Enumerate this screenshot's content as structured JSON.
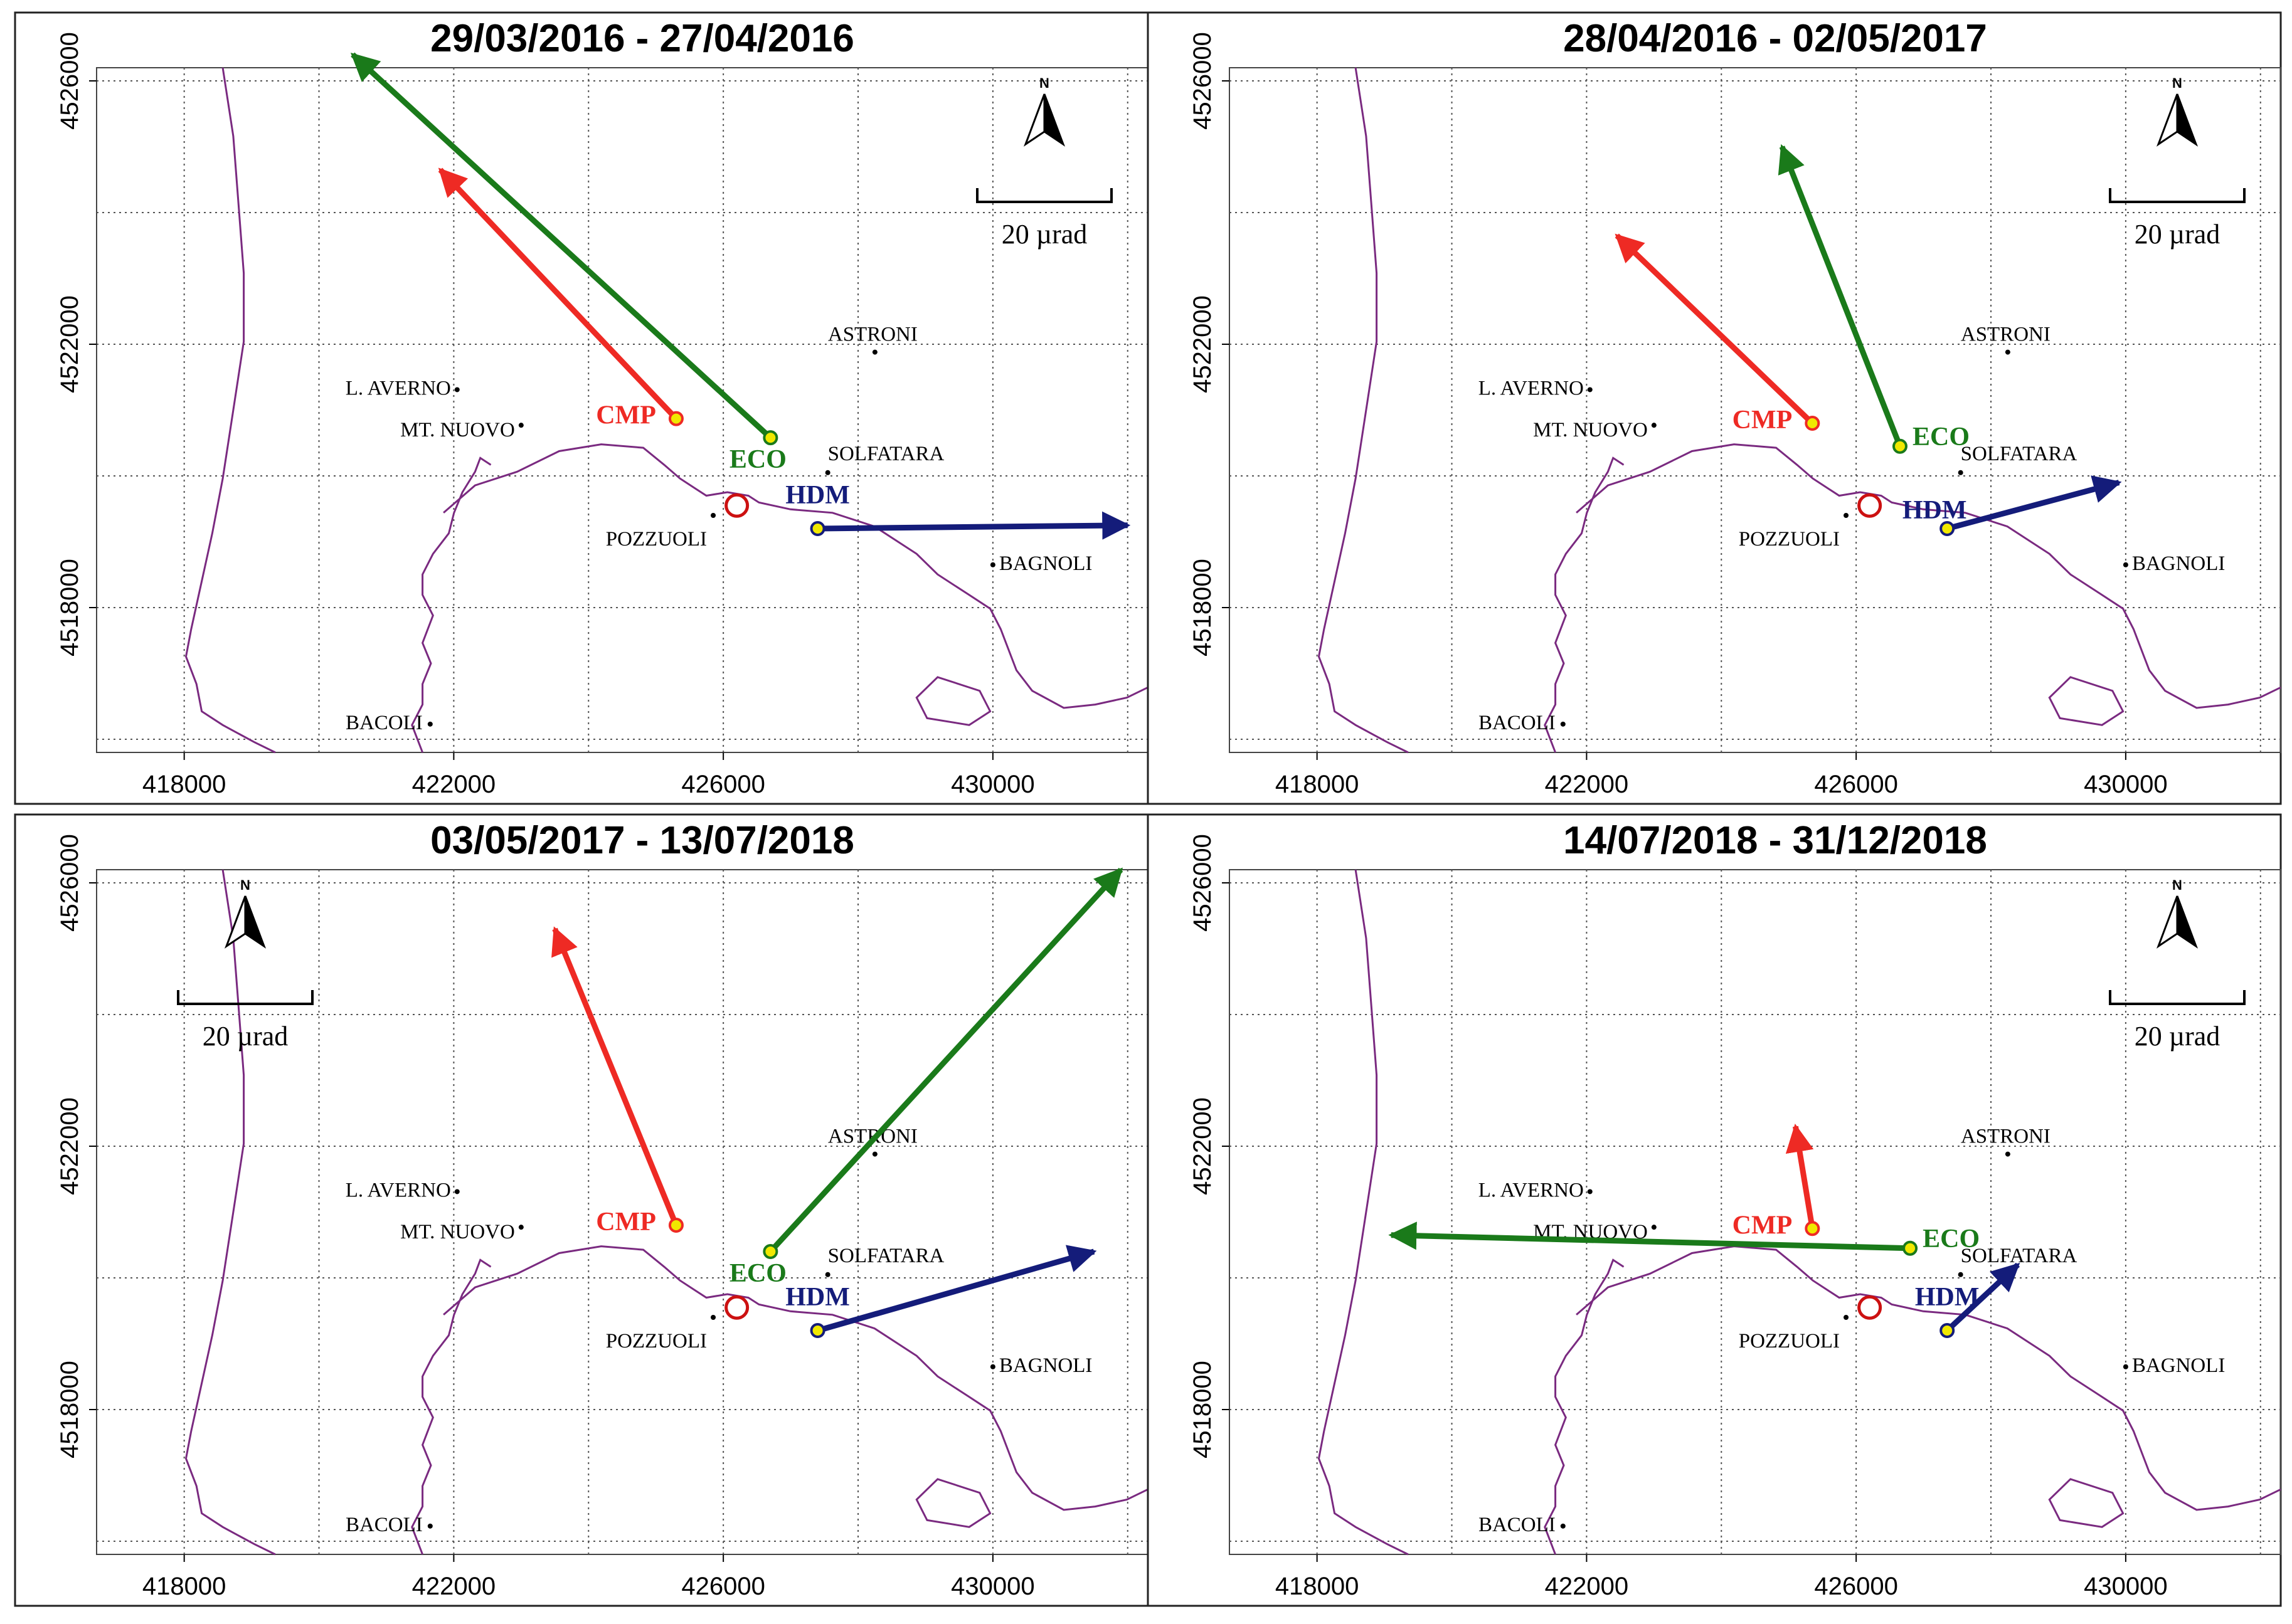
{
  "figure": {
    "axes": {
      "x_range": [
        416700,
        432300
      ],
      "y_range": [
        4515800,
        4526200
      ],
      "x_ticks": [
        418000,
        422000,
        426000,
        430000
      ],
      "y_ticks": [
        4518000,
        4522000,
        4526000
      ],
      "x_tick_labels": [
        "418000",
        "422000",
        "426000",
        "430000"
      ],
      "y_tick_labels": [
        "4518000",
        "4522000",
        "4526000"
      ]
    },
    "scale_bar_label": "20 µrad",
    "north_label": "N",
    "colors": {
      "CMP": "#ee2a24",
      "ECO": "#1a7a1a",
      "HDM": "#141c7a",
      "coast": "#7a2a80",
      "vent": "#cc1111",
      "station_fill": "#f0e800"
    },
    "places": {
      "ASTRONI": "ASTRONI",
      "L_AVERNO": "L. AVERNO",
      "MT_NUOVO": "MT. NUOVO",
      "SOLFATARA": "SOLFATARA",
      "POZZUOLI": "POZZUOLI",
      "BAGNOLI": "BAGNOLI",
      "BACOLI": "BACOLI"
    }
  },
  "panels": [
    {
      "title": "29/03/2016 - 27/04/2016",
      "hdm_label": "HDM",
      "scale_corner": "top-right",
      "chart_data": {
        "type": "map-vectors",
        "units": "UTM m; tilt vector length scaled to 20 µrad bar",
        "stations": [
          {
            "name": "CMP",
            "x": 425300,
            "y": 4520870,
            "tip_x": 421800,
            "tip_y": 4524650
          },
          {
            "name": "ECO",
            "x": 426700,
            "y": 4520580,
            "tip_x": 420500,
            "tip_y": 4526400
          },
          {
            "name": "HDM",
            "x": 427400,
            "y": 4519200,
            "tip_x": 432000,
            "tip_y": 4519250
          }
        ]
      }
    },
    {
      "title": "28/04/2016 - 02/05/2017",
      "hdm_label": "HDM",
      "scale_corner": "top-right",
      "chart_data": {
        "type": "map-vectors",
        "units": "UTM m; tilt vector length scaled to 20 µrad bar",
        "stations": [
          {
            "name": "CMP",
            "x": 425350,
            "y": 4520800,
            "tip_x": 422450,
            "tip_y": 4523650
          },
          {
            "name": "ECO",
            "x": 426650,
            "y": 4520450,
            "tip_x": 424900,
            "tip_y": 4525000
          },
          {
            "name": "HDM",
            "x": 427350,
            "y": 4519200,
            "tip_x": 429900,
            "tip_y": 4519900
          }
        ]
      }
    },
    {
      "title": "03/05/2017 - 13/07/2018",
      "hdm_label": "HDM",
      "scale_corner": "top-left",
      "chart_data": {
        "type": "map-vectors",
        "units": "UTM m; tilt vector length scaled to 20 µrad bar",
        "stations": [
          {
            "name": "CMP",
            "x": 425300,
            "y": 4520800,
            "tip_x": 423500,
            "tip_y": 4525300
          },
          {
            "name": "ECO",
            "x": 426700,
            "y": 4520400,
            "tip_x": 431900,
            "tip_y": 4526200
          },
          {
            "name": "HDM",
            "x": 427400,
            "y": 4519200,
            "tip_x": 431500,
            "tip_y": 4520400
          }
        ]
      }
    },
    {
      "title": "14/07/2018 - 31/12/2018",
      "hdm_label": "HDM",
      "scale_corner": "top-right",
      "chart_data": {
        "type": "map-vectors",
        "units": "UTM m; tilt vector length scaled to 20 µrad bar",
        "stations": [
          {
            "name": "CMP",
            "x": 425350,
            "y": 4520750,
            "tip_x": 425100,
            "tip_y": 4522300
          },
          {
            "name": "ECO",
            "x": 426800,
            "y": 4520450,
            "tip_x": 419100,
            "tip_y": 4520650
          },
          {
            "name": "HDM",
            "x": 427350,
            "y": 4519200,
            "tip_x": 428400,
            "tip_y": 4520200
          }
        ]
      }
    }
  ]
}
